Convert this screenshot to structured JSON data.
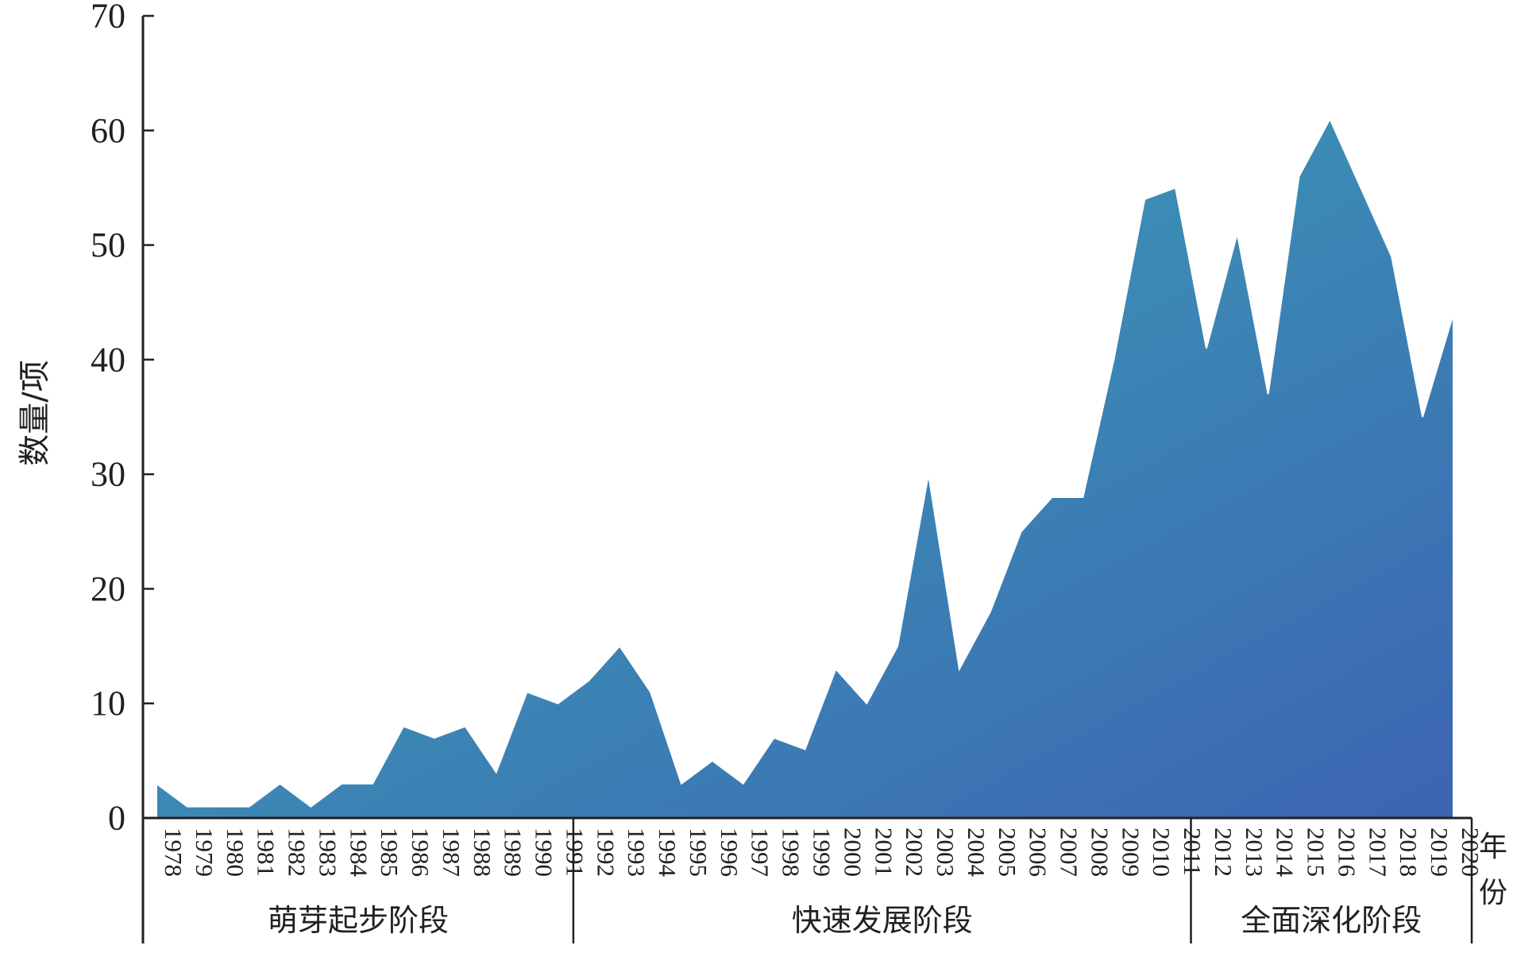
{
  "chart_data": {
    "type": "area",
    "ylabel": "数量/项",
    "xlabel": "年份",
    "ylim": [
      0,
      70
    ],
    "yticks": [
      0,
      10,
      20,
      30,
      40,
      50,
      60,
      70
    ],
    "categories": [
      "1978",
      "1979",
      "1980",
      "1981",
      "1982",
      "1983",
      "1984",
      "1985",
      "1986",
      "1987",
      "1988",
      "1989",
      "1990",
      "1991",
      "1992",
      "1993",
      "1994",
      "1995",
      "1996",
      "1997",
      "1998",
      "1999",
      "2000",
      "2001",
      "2002",
      "2003",
      "2004",
      "2005",
      "2006",
      "2007",
      "2008",
      "2009",
      "2010",
      "2011",
      "2012",
      "2013",
      "2014",
      "2015",
      "2016",
      "2017",
      "2018",
      "2019",
      "2020"
    ],
    "values": [
      3,
      1,
      1,
      1,
      3,
      1,
      3,
      3,
      8,
      7,
      8,
      4,
      11,
      10,
      12,
      15,
      11,
      3,
      5,
      3,
      7,
      6,
      13,
      10,
      15,
      30,
      13,
      18,
      25,
      28,
      28,
      40,
      54,
      55,
      41,
      51,
      37,
      56,
      61,
      55,
      49,
      35,
      44
    ],
    "phases": [
      {
        "label": "萌芽起步阶段",
        "start": "1978",
        "end": "1991"
      },
      {
        "label": "快速发展阶段",
        "start": "1992",
        "end": "2011"
      },
      {
        "label": "全面深化阶段",
        "start": "2012",
        "end": "2020"
      }
    ],
    "colors": {
      "gradient_start": "#3aacb8",
      "gradient_end": "#3c64b2",
      "axis": "#231f20"
    },
    "grid": false,
    "legend": "none"
  }
}
